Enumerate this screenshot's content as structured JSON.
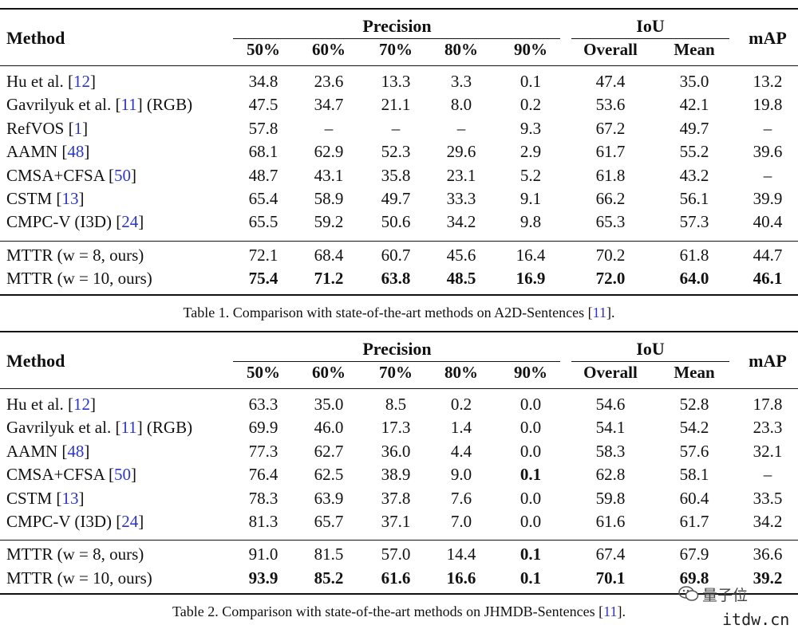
{
  "tables": [
    {
      "headers": {
        "method": "Method",
        "precision": "Precision",
        "iou": "IoU",
        "map": "mAP",
        "sub": [
          "50%",
          "60%",
          "70%",
          "80%",
          "90%",
          "Overall",
          "Mean"
        ]
      },
      "rows": [
        {
          "name": "Hu et al. [",
          "ref": "12",
          "suffix": "]",
          "values": [
            "34.8",
            "23.6",
            "13.3",
            "3.3",
            "0.1",
            "47.4",
            "35.0",
            "13.2"
          ]
        },
        {
          "name": "Gavrilyuk et al. [",
          "ref": "11",
          "suffix": "] (RGB)",
          "values": [
            "47.5",
            "34.7",
            "21.1",
            "8.0",
            "0.2",
            "53.6",
            "42.1",
            "19.8"
          ]
        },
        {
          "name": "RefVOS [",
          "ref": "1",
          "suffix": "]",
          "values": [
            "57.8",
            "–",
            "–",
            "–",
            "9.3",
            "67.2",
            "49.7",
            "–"
          ]
        },
        {
          "name": "AAMN [",
          "ref": "48",
          "suffix": "]",
          "values": [
            "68.1",
            "62.9",
            "52.3",
            "29.6",
            "2.9",
            "61.7",
            "55.2",
            "39.6"
          ]
        },
        {
          "name": "CMSA+CFSA [",
          "ref": "50",
          "suffix": "]",
          "values": [
            "48.7",
            "43.1",
            "35.8",
            "23.1",
            "5.2",
            "61.8",
            "43.2",
            "–"
          ]
        },
        {
          "name": "CSTM [",
          "ref": "13",
          "suffix": "]",
          "values": [
            "65.4",
            "58.9",
            "49.7",
            "33.3",
            "9.1",
            "66.2",
            "56.1",
            "39.9"
          ]
        },
        {
          "name": "CMPC-V (I3D) [",
          "ref": "24",
          "suffix": "]",
          "values": [
            "65.5",
            "59.2",
            "50.6",
            "34.2",
            "9.8",
            "65.3",
            "57.3",
            "40.4"
          ]
        },
        {
          "name": "MTTR (w = 8, ours)",
          "ref": "",
          "suffix": "",
          "values": [
            "72.1",
            "68.4",
            "60.7",
            "45.6",
            "16.4",
            "70.2",
            "61.8",
            "44.7"
          ]
        },
        {
          "name": "MTTR (w = 10, ours)",
          "ref": "",
          "suffix": "",
          "values": [
            "75.4",
            "71.2",
            "63.8",
            "48.5",
            "16.9",
            "72.0",
            "64.0",
            "46.1"
          ]
        }
      ],
      "bold_cells": [
        [
          8,
          0
        ],
        [
          8,
          1
        ],
        [
          8,
          2
        ],
        [
          8,
          3
        ],
        [
          8,
          4
        ],
        [
          8,
          5
        ],
        [
          8,
          6
        ],
        [
          8,
          7
        ]
      ],
      "caption_pre": "Table 1. Comparison with state-of-the-art methods on A2D-Sentences [",
      "caption_ref": "11",
      "caption_post": "]."
    },
    {
      "headers": {
        "method": "Method",
        "precision": "Precision",
        "iou": "IoU",
        "map": "mAP",
        "sub": [
          "50%",
          "60%",
          "70%",
          "80%",
          "90%",
          "Overall",
          "Mean"
        ]
      },
      "rows": [
        {
          "name": "Hu et al. [",
          "ref": "12",
          "suffix": "]",
          "values": [
            "63.3",
            "35.0",
            "8.5",
            "0.2",
            "0.0",
            "54.6",
            "52.8",
            "17.8"
          ]
        },
        {
          "name": "Gavrilyuk et al. [",
          "ref": "11",
          "suffix": "] (RGB)",
          "values": [
            "69.9",
            "46.0",
            "17.3",
            "1.4",
            "0.0",
            "54.1",
            "54.2",
            "23.3"
          ]
        },
        {
          "name": "AAMN [",
          "ref": "48",
          "suffix": "]",
          "values": [
            "77.3",
            "62.7",
            "36.0",
            "4.4",
            "0.0",
            "58.3",
            "57.6",
            "32.1"
          ]
        },
        {
          "name": "CMSA+CFSA [",
          "ref": "50",
          "suffix": "]",
          "values": [
            "76.4",
            "62.5",
            "38.9",
            "9.0",
            "0.1",
            "62.8",
            "58.1",
            "–"
          ]
        },
        {
          "name": "CSTM [",
          "ref": "13",
          "suffix": "]",
          "values": [
            "78.3",
            "63.9",
            "37.8",
            "7.6",
            "0.0",
            "59.8",
            "60.4",
            "33.5"
          ]
        },
        {
          "name": "CMPC-V (I3D) [",
          "ref": "24",
          "suffix": "]",
          "values": [
            "81.3",
            "65.7",
            "37.1",
            "7.0",
            "0.0",
            "61.6",
            "61.7",
            "34.2"
          ]
        },
        {
          "name": "MTTR (w = 8, ours)",
          "ref": "",
          "suffix": "",
          "values": [
            "91.0",
            "81.5",
            "57.0",
            "14.4",
            "0.1",
            "67.4",
            "67.9",
            "36.6"
          ]
        },
        {
          "name": "MTTR (w = 10, ours)",
          "ref": "",
          "suffix": "",
          "values": [
            "93.9",
            "85.2",
            "61.6",
            "16.6",
            "0.1",
            "70.1",
            "69.8",
            "39.2"
          ]
        }
      ],
      "bold_cells": [
        [
          3,
          4
        ],
        [
          6,
          4
        ],
        [
          7,
          0
        ],
        [
          7,
          1
        ],
        [
          7,
          2
        ],
        [
          7,
          3
        ],
        [
          7,
          4
        ],
        [
          7,
          5
        ],
        [
          7,
          6
        ],
        [
          7,
          7
        ]
      ],
      "caption_pre": "Table 2. Comparison with state-of-the-art methods on JHMDB-Sentences [",
      "caption_ref": "11",
      "caption_post": "]."
    }
  ],
  "watermark": {
    "brand": "量子位",
    "site": "itdw.cn"
  }
}
